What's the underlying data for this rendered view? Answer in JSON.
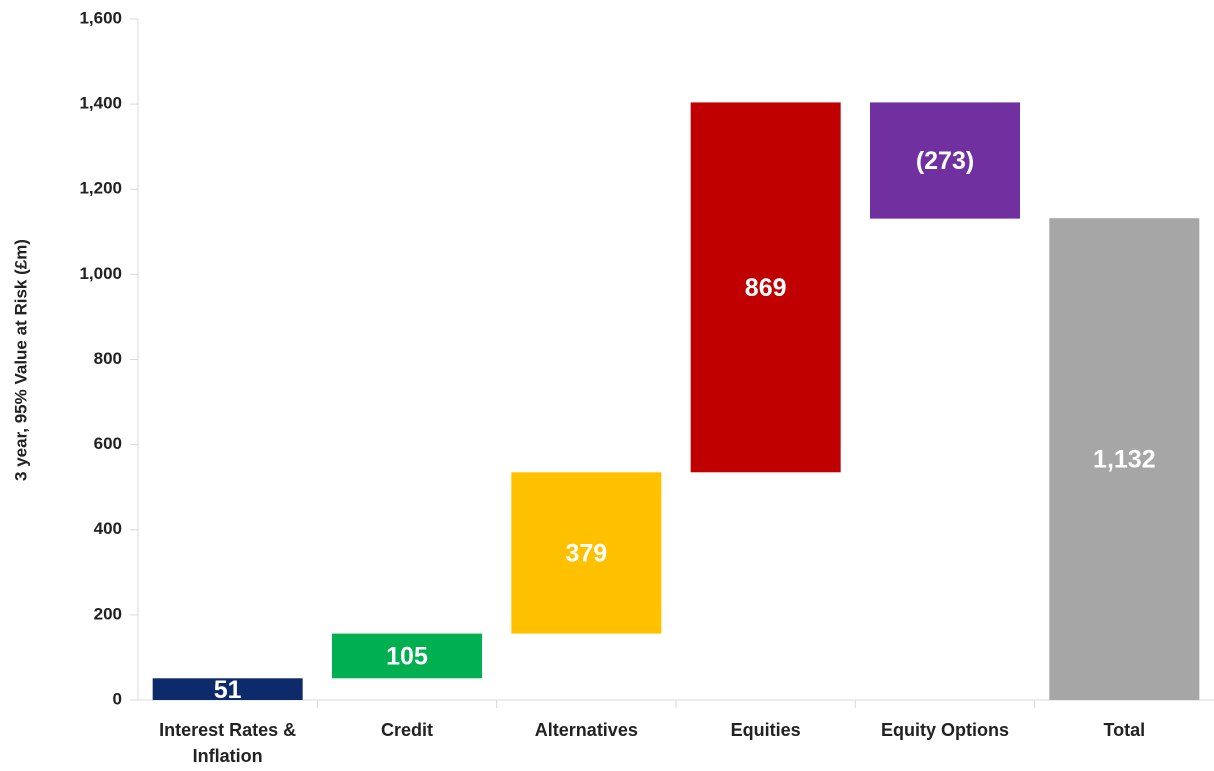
{
  "chart_data": {
    "type": "waterfall",
    "y_label": "3 year, 95% Value at Risk (£m)",
    "categories": [
      "Interest Rates & Inflation",
      "Credit",
      "Alternatives",
      "Equities",
      "Equity Options",
      "Total"
    ],
    "values": [
      51,
      105,
      379,
      869,
      -273,
      1132
    ],
    "value_labels": [
      "51",
      "105",
      "379",
      "869",
      "(273)",
      "1,132"
    ],
    "measures": [
      "relative",
      "relative",
      "relative",
      "relative",
      "relative",
      "total"
    ],
    "colors": [
      "#0d2a6b",
      "#00b050",
      "#ffc000",
      "#c00000",
      "#7030a0",
      "#a6a6a6"
    ],
    "ylim": [
      0,
      1600
    ],
    "yticks": [
      0,
      200,
      400,
      600,
      800,
      {
        "value": 1000,
        "label": "1,000"
      },
      {
        "value": 1200,
        "label": "1,200"
      },
      {
        "value": 1400,
        "label": "1,400"
      },
      {
        "value": 1600,
        "label": "1,600"
      }
    ],
    "grid": false
  }
}
